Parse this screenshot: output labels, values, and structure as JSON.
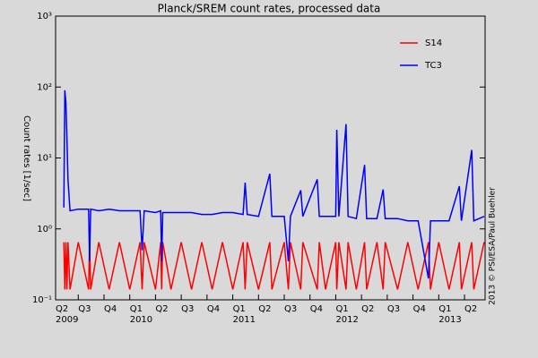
{
  "chart_data": {
    "type": "line",
    "title": "Planck/SREM count rates, processed data",
    "ylabel": "Count rates [1/sec]",
    "credit": "2013 © PSI/ESA/Paul Buehler",
    "log_y": true,
    "legend": "upper right",
    "xlim": [
      2009.28,
      2013.45
    ],
    "ylim": [
      0.1,
      1000
    ],
    "yticks": [
      {
        "value": 0.1,
        "label": "10⁻¹"
      },
      {
        "value": 1,
        "label": "10⁰"
      },
      {
        "value": 10,
        "label": "10¹"
      },
      {
        "value": 100,
        "label": "10²"
      },
      {
        "value": 1000,
        "label": "10³"
      }
    ],
    "xticks": [
      {
        "value": 2009.25,
        "label": "Q2"
      },
      {
        "value": 2009.5,
        "label": "Q3"
      },
      {
        "value": 2009.75,
        "label": "Q4"
      },
      {
        "value": 2010,
        "label": "Q1"
      },
      {
        "value": 2010.25,
        "label": "Q2"
      },
      {
        "value": 2010.5,
        "label": "Q3"
      },
      {
        "value": 2010.75,
        "label": "Q4"
      },
      {
        "value": 2011,
        "label": "Q1"
      },
      {
        "value": 2011.25,
        "label": "Q2"
      },
      {
        "value": 2011.5,
        "label": "Q3"
      },
      {
        "value": 2011.75,
        "label": "Q4"
      },
      {
        "value": 2012,
        "label": "Q1"
      },
      {
        "value": 2012.25,
        "label": "Q2"
      },
      {
        "value": 2012.5,
        "label": "Q3"
      },
      {
        "value": 2012.75,
        "label": "Q4"
      },
      {
        "value": 2013,
        "label": "Q1"
      },
      {
        "value": 2013.25,
        "label": "Q2"
      }
    ],
    "xyears": [
      {
        "value": 2009.25,
        "label": "2009"
      },
      {
        "value": 2010,
        "label": "2010"
      },
      {
        "value": 2011,
        "label": "2011"
      },
      {
        "value": 2012,
        "label": "2012"
      },
      {
        "value": 2013,
        "label": "2013"
      }
    ],
    "x": [
      2009.36,
      2009.37,
      2009.38,
      2009.39,
      2009.4,
      2009.42,
      2009.5,
      2009.6,
      2009.61,
      2009.62,
      2009.7,
      2009.8,
      2009.9,
      2010.0,
      2010.1,
      2010.12,
      2010.14,
      2010.25,
      2010.3,
      2010.31,
      2010.32,
      2010.4,
      2010.5,
      2010.6,
      2010.7,
      2010.8,
      2010.9,
      2011.0,
      2011.1,
      2011.12,
      2011.14,
      2011.25,
      2011.36,
      2011.38,
      2011.5,
      2011.54,
      2011.56,
      2011.66,
      2011.68,
      2011.82,
      2011.84,
      2011.9,
      2012.0,
      2012.01,
      2012.03,
      2012.1,
      2012.12,
      2012.2,
      2012.28,
      2012.3,
      2012.4,
      2012.46,
      2012.48,
      2012.6,
      2012.7,
      2012.8,
      2012.9,
      2012.92,
      2013.0,
      2013.1,
      2013.2,
      2013.22,
      2013.32,
      2013.34,
      2013.44
    ],
    "series": [
      {
        "name": "S14",
        "color": "#ff0000",
        "values": [
          0.65,
          0.14,
          0.65,
          0.14,
          0.65,
          0.14,
          0.65,
          0.14,
          0.65,
          0.14,
          0.65,
          0.14,
          0.65,
          0.14,
          0.65,
          0.14,
          0.65,
          0.14,
          0.65,
          0.14,
          0.65,
          0.14,
          0.65,
          0.14,
          0.65,
          0.14,
          0.65,
          0.14,
          0.65,
          0.14,
          0.65,
          0.14,
          0.65,
          0.14,
          0.65,
          0.14,
          0.65,
          0.14,
          0.65,
          0.14,
          0.65,
          0.14,
          0.65,
          0.14,
          0.65,
          0.14,
          0.65,
          0.14,
          0.65,
          0.14,
          0.65,
          0.14,
          0.65,
          0.14,
          0.65,
          0.14,
          0.65,
          0.14,
          0.65,
          0.14,
          0.65,
          0.14,
          0.65,
          0.14,
          0.65
        ]
      },
      {
        "name": "TC3",
        "color": "#0000ff",
        "values": [
          2,
          90,
          60,
          20,
          5,
          1.8,
          1.9,
          1.9,
          0.35,
          1.9,
          1.8,
          1.9,
          1.8,
          1.8,
          1.8,
          0.5,
          1.8,
          1.7,
          1.8,
          0.35,
          1.7,
          1.7,
          1.7,
          1.7,
          1.6,
          1.6,
          1.7,
          1.7,
          1.6,
          4.5,
          1.6,
          1.5,
          6,
          1.5,
          1.5,
          0.35,
          1.5,
          3.5,
          1.5,
          5,
          1.5,
          1.5,
          1.5,
          25,
          1.5,
          30,
          1.5,
          1.4,
          8,
          1.4,
          1.4,
          3.6,
          1.4,
          1.4,
          1.3,
          1.3,
          0.2,
          1.3,
          1.3,
          1.3,
          4,
          1.3,
          13,
          1.3,
          1.5
        ]
      }
    ]
  }
}
